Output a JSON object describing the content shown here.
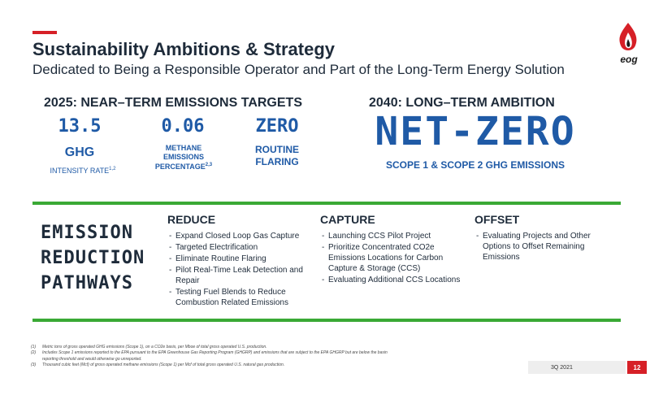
{
  "header": {
    "title": "Sustainability Ambitions & Strategy",
    "subtitle": "Dedicated to Being a Responsible Operator and Part of the Long-Term Energy Solution",
    "logo_text": "eog"
  },
  "near_term": {
    "heading": "2025: NEAR–TERM EMISSIONS TARGETS",
    "metrics": [
      {
        "value": "13.5",
        "label": "GHG",
        "sublabel": "INTENSITY RATE",
        "footnote": "1,2"
      },
      {
        "value": "0.06",
        "label_lines": [
          "METHANE",
          "EMISSIONS",
          "PERCENTAGE"
        ],
        "footnote": "2,3"
      },
      {
        "value": "ZERO",
        "label_lines": [
          "ROUTINE",
          "FLARING"
        ]
      }
    ]
  },
  "long_term": {
    "heading": "2040: LONG–TERM AMBITION",
    "value": "NET-ZERO",
    "label": "SCOPE 1 & SCOPE 2 GHG EMISSIONS"
  },
  "pathways": {
    "title_lines": [
      "EMISSION",
      "REDUCTION",
      "PATHWAYS"
    ],
    "columns": [
      {
        "heading": "REDUCE",
        "items": [
          "Expand Closed Loop Gas Capture",
          "Targeted Electrification",
          "Eliminate Routine Flaring",
          "Pilot Real-Time Leak Detection and Repair",
          "Testing Fuel Blends to Reduce Combustion Related Emissions"
        ]
      },
      {
        "heading": "CAPTURE",
        "items": [
          "Launching CCS Pilot Project",
          "Prioritize Concentrated CO2e Emissions Locations for Carbon Capture & Storage (CCS)",
          "Evaluating Additional CCS Locations"
        ]
      },
      {
        "heading": "OFFSET",
        "items": [
          "Evaluating Projects and Other Options to Offset Remaining Emissions"
        ]
      }
    ]
  },
  "footnotes": [
    {
      "num": "(1)",
      "text": "Metric tons of gross operated GHG emissions (Scope 1), on a CO2e basis, per Mboe of total gross operated U.S. production."
    },
    {
      "num": "(2)",
      "text": "Includes Scope 1 emissions reported to the EPA pursuant to the EPA Greenhouse Gas Reporting Program (GHGRP) and emissions that are subject to the EPA GHGRP but are below the basin reporting threshold and would otherwise go unreported."
    },
    {
      "num": "(3)",
      "text": "Thousand cubic feet (Mcf) of gross operated methane emissions (Scope 1) per Mcf of total gross operated U.S. natural gas production."
    }
  ],
  "footer": {
    "period": "3Q 2021",
    "page_number": "12"
  },
  "colors": {
    "accent_red": "#d62027",
    "metric_blue": "#1f5aa6",
    "divider_green": "#3aa935",
    "text_dark": "#1e2b3a"
  }
}
